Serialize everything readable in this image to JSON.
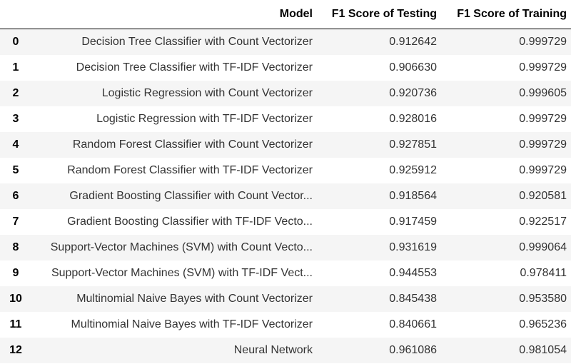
{
  "table": {
    "index_header": "",
    "headers": [
      "Model",
      "F1 Score of Testing",
      "F1 Score of Training"
    ],
    "rows": [
      {
        "index": "0",
        "model": "Decision Tree Classifier with Count Vectorizer",
        "test": "0.912642",
        "train": "0.999729"
      },
      {
        "index": "1",
        "model": "Decision Tree Classifier with TF-IDF Vectorizer",
        "test": "0.906630",
        "train": "0.999729"
      },
      {
        "index": "2",
        "model": "Logistic Regression with Count Vectorizer",
        "test": "0.920736",
        "train": "0.999605"
      },
      {
        "index": "3",
        "model": "Logistic Regression with TF-IDF Vectorizer",
        "test": "0.928016",
        "train": "0.999729"
      },
      {
        "index": "4",
        "model": "Random Forest Classifier with Count Vectorizer",
        "test": "0.927851",
        "train": "0.999729"
      },
      {
        "index": "5",
        "model": "Random Forest Classifier with TF-IDF Vectorizer",
        "test": "0.925912",
        "train": "0.999729"
      },
      {
        "index": "6",
        "model": "Gradient Boosting Classifier with Count Vector...",
        "test": "0.918564",
        "train": "0.920581"
      },
      {
        "index": "7",
        "model": "Gradient Boosting Classifier with TF-IDF Vecto...",
        "test": "0.917459",
        "train": "0.922517"
      },
      {
        "index": "8",
        "model": "Support-Vector Machines (SVM) with Count Vecto...",
        "test": "0.931619",
        "train": "0.999064"
      },
      {
        "index": "9",
        "model": "Support-Vector Machines (SVM) with TF-IDF Vect...",
        "test": "0.944553",
        "train": "0.978411"
      },
      {
        "index": "10",
        "model": "Multinomial Naive Bayes with Count Vectorizer",
        "test": "0.845438",
        "train": "0.953580"
      },
      {
        "index": "11",
        "model": "Multinomial Naive Bayes with TF-IDF Vectorizer",
        "test": "0.840661",
        "train": "0.965236"
      },
      {
        "index": "12",
        "model": "Neural Network",
        "test": "0.961086",
        "train": "0.981054"
      }
    ]
  },
  "colors": {
    "stripe": "#f5f5f5",
    "header_rule": "#000000",
    "cell_text": "#333333"
  }
}
